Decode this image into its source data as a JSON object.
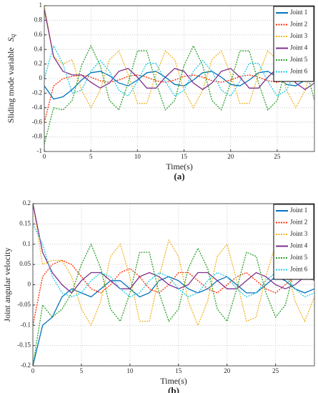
{
  "chart_data": [
    {
      "type": "line",
      "title": "(a)",
      "xlabel": "Time(s)",
      "ylabel": "Sliding mode variable",
      "ylabel_symbol": "S",
      "ylabel_subscript": "q",
      "x": [
        0,
        1,
        2,
        3,
        4,
        5,
        6,
        7,
        8,
        9,
        10,
        11,
        12,
        13,
        14,
        15,
        16,
        17,
        18,
        19,
        20,
        21,
        22,
        23,
        24,
        25,
        26,
        27,
        28,
        29
      ],
      "xlim": [
        0,
        29
      ],
      "xticks": [
        0,
        5,
        10,
        15,
        20,
        25
      ],
      "ylim": [
        -1,
        1
      ],
      "yticks": [
        -1,
        -0.8,
        -0.6,
        -0.4,
        -0.2,
        0,
        0.2,
        0.4,
        0.6,
        0.8,
        1
      ],
      "grid": true,
      "legend": "upper right",
      "series": [
        {
          "name": "Joint 1",
          "color": "#0072bd",
          "dash": false,
          "values": [
            -0.1,
            -0.28,
            -0.25,
            -0.15,
            -0.02,
            0.08,
            0.1,
            0.04,
            -0.06,
            -0.1,
            -0.02,
            0.08,
            0.1,
            0.02,
            -0.08,
            -0.1,
            -0.02,
            0.08,
            0.1,
            0.02,
            -0.08,
            -0.1,
            -0.02,
            0.08,
            0.1,
            0.02,
            -0.08,
            -0.1,
            -0.02,
            0.08
          ]
        },
        {
          "name": "Joint 2",
          "color": "#ff2a00",
          "dash": true,
          "values": [
            -0.6,
            -0.1,
            0,
            0.03,
            0.05,
            0.02,
            -0.03,
            -0.05,
            -0.02,
            0.03,
            0.05,
            0.02,
            -0.03,
            -0.05,
            -0.02,
            0.03,
            0.05,
            0.02,
            -0.03,
            -0.05,
            -0.02,
            0.03,
            0.05,
            0.02,
            -0.03,
            -0.05,
            -0.02,
            0.03,
            0.05,
            0.02
          ]
        },
        {
          "name": "Joint 3",
          "color": "#f0b323",
          "dash": true,
          "values": [
            1,
            0.3,
            0.2,
            0.26,
            -0.16,
            -0.4,
            -0.16,
            0.26,
            0.38,
            0.06,
            -0.34,
            -0.34,
            0.06,
            0.38,
            0.26,
            -0.16,
            -0.4,
            -0.16,
            0.26,
            0.38,
            0.06,
            -0.34,
            -0.34,
            0.06,
            0.38,
            0.26,
            -0.16,
            -0.4,
            -0.16,
            0.26
          ]
        },
        {
          "name": "Joint 4",
          "color": "#7e2f8e",
          "dash": false,
          "values": [
            0.95,
            0.3,
            0.1,
            0.05,
            0.05,
            -0.05,
            -0.13,
            -0.06,
            0.1,
            0.14,
            0.02,
            -0.13,
            -0.13,
            0.02,
            0.14,
            0.1,
            -0.06,
            -0.15,
            -0.06,
            0.1,
            0.14,
            0.02,
            -0.13,
            -0.13,
            0.02,
            0.14,
            0.1,
            -0.06,
            -0.15,
            -0.06
          ]
        },
        {
          "name": "Joint 5",
          "color": "#2ca02c",
          "dash": true,
          "values": [
            -0.9,
            -0.4,
            -0.43,
            -0.3,
            0.18,
            0.45,
            0.18,
            -0.3,
            -0.43,
            -0.06,
            0.38,
            0.38,
            -0.06,
            -0.43,
            -0.3,
            0.18,
            0.45,
            0.18,
            -0.3,
            -0.43,
            -0.06,
            0.38,
            0.38,
            -0.06,
            -0.43,
            -0.3,
            0.18,
            0.45,
            0.18,
            -0.3
          ]
        },
        {
          "name": "Joint 6",
          "color": "#1ec8e6",
          "dash": true,
          "values": [
            0,
            0.45,
            0.2,
            -0.2,
            -0.16,
            0.1,
            0.25,
            0.1,
            -0.16,
            -0.24,
            -0.04,
            0.21,
            0.21,
            -0.04,
            -0.24,
            -0.16,
            0.1,
            0.25,
            0.1,
            -0.16,
            -0.24,
            -0.04,
            0.21,
            0.21,
            -0.04,
            -0.24,
            -0.16,
            0.1,
            0.25,
            0.1
          ]
        }
      ]
    },
    {
      "type": "line",
      "title": "(b)",
      "xlabel": "Time(s)",
      "ylabel": "Joint angular velocity",
      "x": [
        0,
        1,
        2,
        3,
        4,
        5,
        6,
        7,
        8,
        9,
        10,
        11,
        12,
        13,
        14,
        15,
        16,
        17,
        18,
        19,
        20,
        21,
        22,
        23,
        24,
        25,
        26,
        27,
        28,
        29
      ],
      "xlim": [
        0,
        29
      ],
      "xticks": [
        0,
        5,
        10,
        15,
        20,
        25
      ],
      "ylim": [
        -0.2,
        0.2
      ],
      "yticks": [
        -0.2,
        -0.15,
        -0.1,
        -0.05,
        0,
        0.05,
        0.1,
        0.15,
        0.2
      ],
      "grid": true,
      "legend": "upper right",
      "series": [
        {
          "name": "Joint 1",
          "color": "#0072bd",
          "dash": false,
          "values": [
            -0.2,
            -0.1,
            -0.08,
            -0.03,
            -0.01,
            -0.02,
            -0.03,
            -0.01,
            0.01,
            0.01,
            -0.01,
            -0.03,
            -0.02,
            0.01,
            0.02,
            0.01,
            -0.01,
            -0.02,
            -0.01,
            0.01,
            0.02,
            0,
            -0.02,
            -0.02,
            0,
            0.02,
            0.01,
            -0.01,
            -0.02,
            -0.01
          ]
        },
        {
          "name": "Joint 2",
          "color": "#ff2a00",
          "dash": true,
          "values": [
            -0.1,
            0.02,
            0.05,
            0.06,
            0.05,
            0.02,
            -0.01,
            -0.02,
            0,
            0.03,
            0.04,
            0.02,
            -0.01,
            -0.02,
            0,
            0.03,
            0.03,
            0.01,
            -0.01,
            -0.02,
            0,
            0.02,
            0.03,
            0.01,
            -0.01,
            -0.02,
            0,
            0.02,
            0.02,
            0.01
          ]
        },
        {
          "name": "Joint 3",
          "color": "#f0b323",
          "dash": true,
          "values": [
            0.2,
            0.05,
            0.06,
            0.06,
            0.02,
            -0.06,
            -0.1,
            -0.04,
            0.07,
            0.1,
            0.02,
            -0.09,
            -0.09,
            0.02,
            0.11,
            0.07,
            -0.04,
            -0.1,
            -0.04,
            0.07,
            0.1,
            0.01,
            -0.09,
            -0.08,
            0.02,
            0.1,
            0.06,
            -0.04,
            -0.09,
            -0.03
          ]
        },
        {
          "name": "Joint 4",
          "color": "#7e2f8e",
          "dash": false,
          "values": [
            0.2,
            0.08,
            0.03,
            0,
            -0.02,
            0.01,
            0.03,
            0.03,
            0.01,
            -0.01,
            -0.01,
            0.02,
            0.03,
            0.02,
            0,
            -0.01,
            0,
            0.03,
            0.03,
            0.01,
            -0.01,
            -0.01,
            0.01,
            0.03,
            0.02,
            0,
            -0.01,
            0,
            0.02,
            0.02
          ]
        },
        {
          "name": "Joint 5",
          "color": "#2ca02c",
          "dash": true,
          "values": [
            -0.2,
            -0.05,
            -0.08,
            -0.06,
            -0.02,
            0.05,
            0.1,
            0.04,
            -0.06,
            -0.09,
            -0.02,
            0.08,
            0.08,
            -0.02,
            -0.09,
            -0.06,
            0.04,
            0.09,
            0.04,
            -0.06,
            -0.09,
            -0.01,
            0.08,
            0.07,
            -0.02,
            -0.08,
            -0.05,
            0.04,
            0.08,
            0.03
          ]
        },
        {
          "name": "Joint 6",
          "color": "#1ec8e6",
          "dash": true,
          "values": [
            0.15,
            0.1,
            0.02,
            -0.02,
            -0.03,
            -0.02,
            0.01,
            0.03,
            0.02,
            -0.01,
            -0.03,
            -0.02,
            0.01,
            0.03,
            0.02,
            -0.01,
            -0.03,
            -0.02,
            0.01,
            0.03,
            0.02,
            -0.01,
            -0.03,
            -0.02,
            0.01,
            0.03,
            0.02,
            -0.01,
            -0.03,
            -0.02
          ]
        }
      ]
    }
  ]
}
